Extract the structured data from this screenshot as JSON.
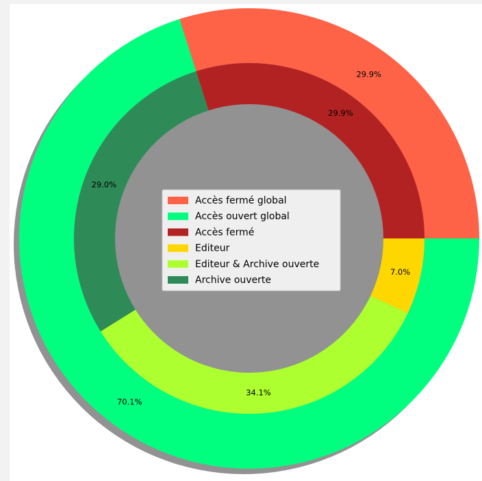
{
  "chart_data": {
    "type": "pie",
    "subtype": "nested-donut",
    "shadow": true,
    "legend": {
      "placement": "center",
      "entries": [
        {
          "label": "Accès fermé global",
          "color": "#ff6347"
        },
        {
          "label": "Accès ouvert global",
          "color": "#00ff7f"
        },
        {
          "label": "Accès fermé",
          "color": "#b22222"
        },
        {
          "label": "Editeur",
          "color": "#ffd700"
        },
        {
          "label": "Editeur & Archive ouverte",
          "color": "#adff2f"
        },
        {
          "label": "Archive ouverte",
          "color": "#2e8b57"
        }
      ]
    },
    "rings": [
      {
        "ring": "outer",
        "slices": [
          {
            "label": "Accès fermé global",
            "value": 29.9,
            "display": "29.9%",
            "color": "#ff6347"
          },
          {
            "label": "Accès ouvert global",
            "value": 70.1,
            "display": "70.1%",
            "color": "#00ff7f"
          }
        ]
      },
      {
        "ring": "inner",
        "slices": [
          {
            "label": "Accès fermé",
            "value": 29.9,
            "display": "29.9%",
            "color": "#b22222"
          },
          {
            "label": "Archive ouverte",
            "value": 29.0,
            "display": "29.0%",
            "color": "#2e8b57"
          },
          {
            "label": "Editeur & Archive ouverte",
            "value": 34.1,
            "display": "34.1%",
            "color": "#adff2f"
          },
          {
            "label": "Editeur",
            "value": 7.0,
            "display": "7.0%",
            "color": "#ffd700"
          }
        ]
      }
    ]
  }
}
